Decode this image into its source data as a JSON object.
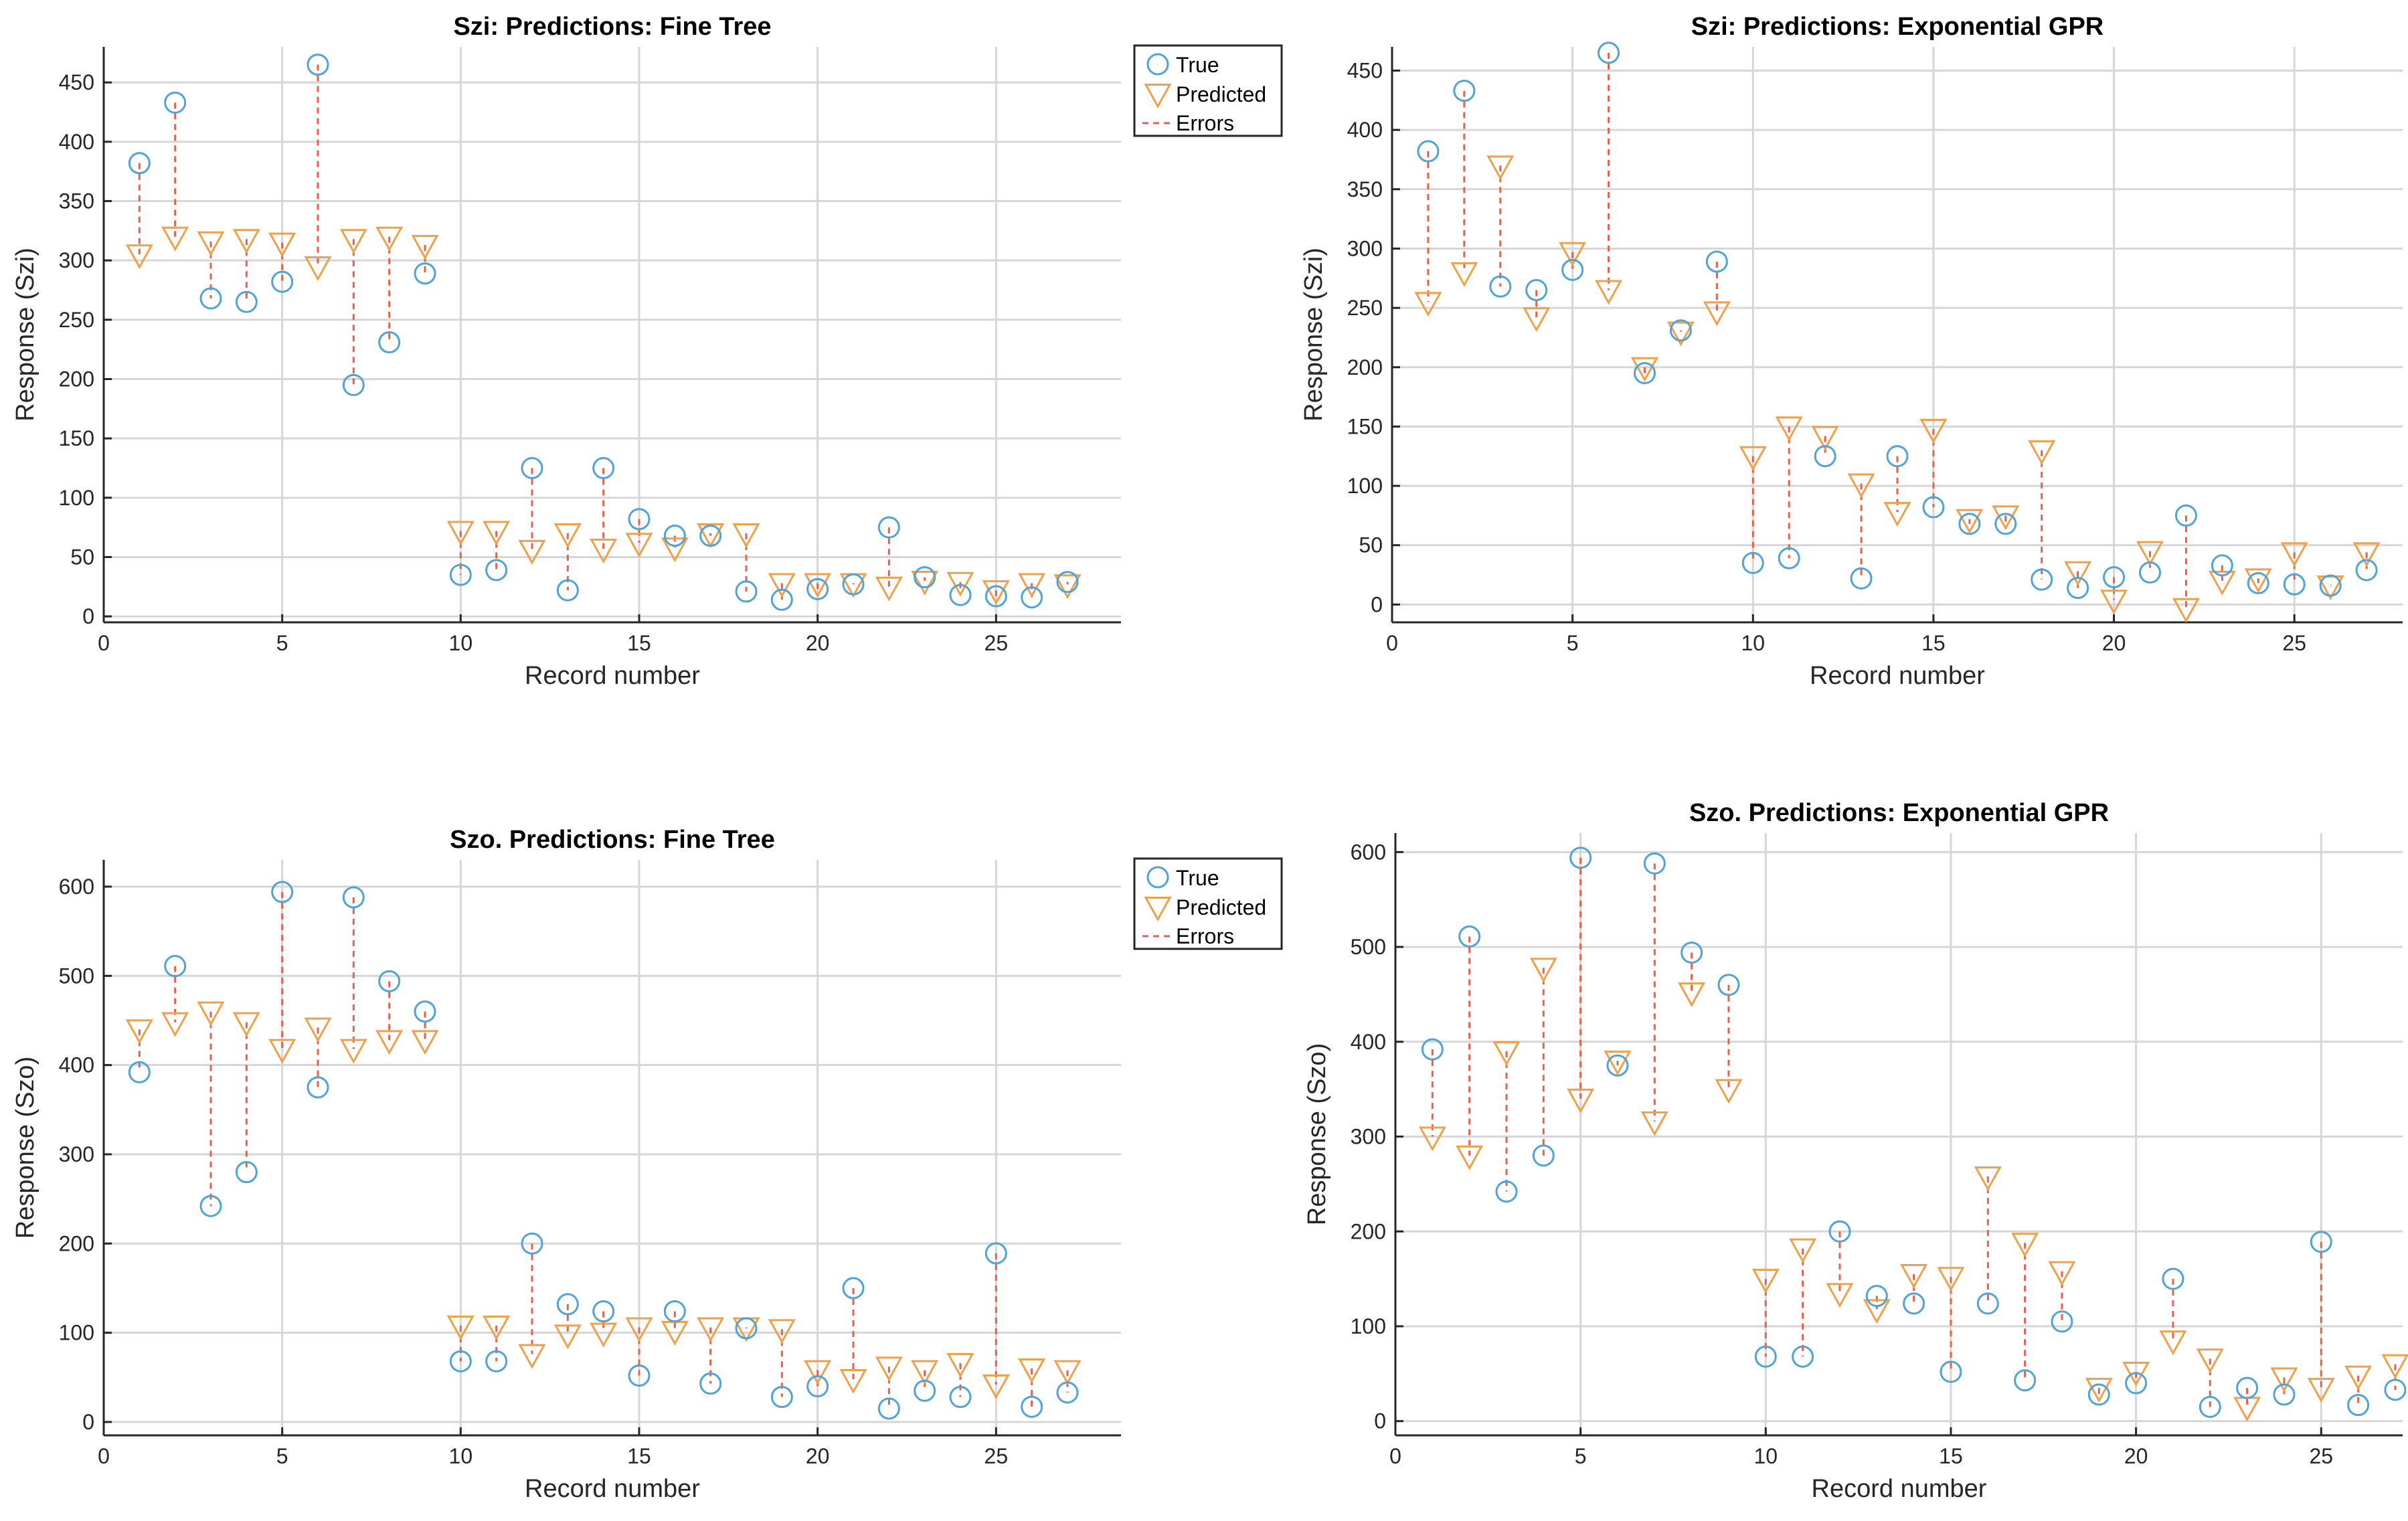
{
  "colors": {
    "true": "#4fa3d8",
    "predicted": "#f0a04b",
    "errors": "#e8604c",
    "grid": "#d6d6d6",
    "axis": "#262626"
  },
  "legend_labels": {
    "true": "True",
    "predicted": "Predicted",
    "errors": "Errors"
  },
  "chart_data": [
    {
      "type": "scatter",
      "title": "Szi: Predictions: Fine Tree",
      "xlabel": "Record number",
      "ylabel": "Response (Szi)",
      "xlim": [
        0,
        28.5
      ],
      "ylim": [
        -5,
        480
      ],
      "xticks": [
        0,
        5,
        10,
        15,
        20,
        25
      ],
      "yticks": [
        0,
        50,
        100,
        150,
        200,
        250,
        300,
        350,
        400,
        450
      ],
      "grid": true,
      "legend": "top-right",
      "x": [
        1,
        2,
        3,
        4,
        5,
        6,
        7,
        8,
        9,
        10,
        11,
        12,
        13,
        14,
        15,
        16,
        17,
        18,
        19,
        20,
        21,
        22,
        23,
        24,
        25,
        26,
        27
      ],
      "series": [
        {
          "name": "True",
          "values": [
            382,
            433,
            268,
            265,
            282,
            465,
            195,
            231,
            289,
            35,
            39,
            125,
            22,
            125,
            82,
            68,
            68,
            21,
            14,
            23,
            27,
            75,
            33,
            18,
            17,
            16,
            29
          ]
        },
        {
          "name": "Predicted",
          "values": [
            305,
            320,
            316,
            318,
            315,
            295,
            318,
            320,
            313,
            72,
            72,
            56,
            70,
            57,
            62,
            58,
            70,
            70,
            28,
            28,
            28,
            25,
            30,
            29,
            22,
            28,
            27
          ]
        }
      ]
    },
    {
      "type": "scatter",
      "title": "Szi: Predictions: Exponential GPR",
      "xlabel": "Record number",
      "ylabel": "Response (Szi)",
      "xlim": [
        0,
        28
      ],
      "ylim": [
        -15,
        470
      ],
      "xticks": [
        0,
        5,
        10,
        15,
        20,
        25
      ],
      "yticks": [
        0,
        50,
        100,
        150,
        200,
        250,
        300,
        350,
        400,
        450
      ],
      "grid": true,
      "x": [
        1,
        2,
        3,
        4,
        5,
        6,
        7,
        8,
        9,
        10,
        11,
        12,
        13,
        14,
        15,
        16,
        17,
        18,
        19,
        20,
        21,
        22,
        23,
        24,
        25,
        26,
        27
      ],
      "series": [
        {
          "name": "True",
          "values": [
            382,
            433,
            268,
            265,
            282,
            465,
            195,
            231,
            289,
            35,
            39,
            125,
            22,
            125,
            82,
            68,
            68,
            21,
            14,
            23,
            27,
            75,
            33,
            18,
            17,
            16,
            29
          ]
        },
        {
          "name": "Predicted",
          "values": [
            255,
            280,
            370,
            242,
            297,
            265,
            200,
            230,
            247,
            125,
            150,
            142,
            102,
            78,
            148,
            72,
            75,
            130,
            28,
            4,
            45,
            -3,
            20,
            22,
            44,
            16,
            44
          ]
        }
      ]
    },
    {
      "type": "scatter",
      "title": "Szo. Predictions: Fine Tree",
      "xlabel": "Record number",
      "ylabel": "Response (Szo)",
      "xlim": [
        0,
        28.5
      ],
      "ylim": [
        -15,
        630
      ],
      "xticks": [
        0,
        5,
        10,
        15,
        20,
        25
      ],
      "yticks": [
        0,
        100,
        200,
        300,
        400,
        500,
        600
      ],
      "grid": true,
      "legend": "top-right",
      "x": [
        1,
        2,
        3,
        4,
        5,
        6,
        7,
        8,
        9,
        10,
        11,
        12,
        13,
        14,
        15,
        16,
        17,
        18,
        19,
        20,
        21,
        22,
        23,
        24,
        25,
        26,
        27
      ],
      "series": [
        {
          "name": "True",
          "values": [
            392,
            511,
            242,
            280,
            594,
            375,
            588,
            494,
            460,
            68,
            68,
            200,
            132,
            124,
            52,
            124,
            43,
            105,
            28,
            40,
            150,
            15,
            35,
            28,
            189,
            17,
            33
          ]
        },
        {
          "name": "Predicted",
          "values": [
            440,
            448,
            460,
            448,
            418,
            442,
            418,
            428,
            428,
            108,
            108,
            76,
            98,
            100,
            106,
            102,
            106,
            106,
            104,
            58,
            48,
            62,
            58,
            66,
            42,
            60,
            58
          ]
        }
      ]
    },
    {
      "type": "scatter",
      "title": "Szo. Predictions: Exponential GPR",
      "xlabel": "Record number",
      "ylabel": "Response (Szo)",
      "xlim": [
        0,
        27.2
      ],
      "ylim": [
        -15,
        620
      ],
      "xticks": [
        0,
        5,
        10,
        15,
        20,
        25
      ],
      "yticks": [
        0,
        100,
        200,
        300,
        400,
        500,
        600
      ],
      "grid": true,
      "x": [
        1,
        2,
        3,
        4,
        5,
        6,
        7,
        8,
        9,
        10,
        11,
        12,
        13,
        14,
        15,
        16,
        17,
        18,
        19,
        20,
        21,
        22,
        23,
        24,
        25,
        26,
        27
      ],
      "series": [
        {
          "name": "True",
          "values": [
            392,
            511,
            242,
            280,
            594,
            375,
            588,
            494,
            460,
            68,
            68,
            200,
            132,
            124,
            52,
            124,
            43,
            105,
            28,
            40,
            150,
            15,
            35,
            28,
            189,
            17,
            33
          ]
        },
        {
          "name": "Predicted",
          "values": [
            300,
            280,
            390,
            478,
            340,
            380,
            316,
            452,
            350,
            150,
            182,
            135,
            118,
            155,
            152,
            258,
            188,
            158,
            35,
            52,
            85,
            66,
            15,
            46,
            35,
            48,
            60
          ]
        }
      ]
    }
  ]
}
